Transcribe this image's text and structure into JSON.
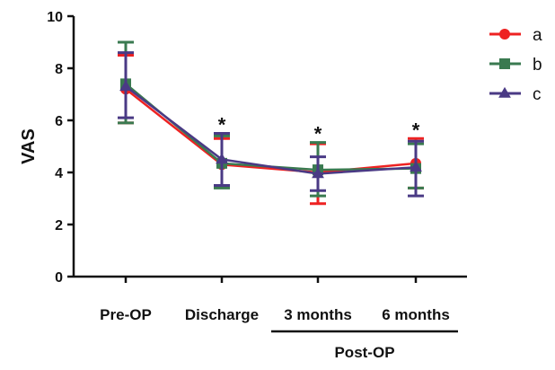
{
  "chart_data": {
    "type": "line",
    "title": "",
    "xlabel": "",
    "ylabel": "VAS",
    "ylim": [
      0,
      10
    ],
    "yticks": [
      0,
      2,
      4,
      6,
      8,
      10
    ],
    "categories": [
      "Pre-OP",
      "Discharge",
      "3 months",
      "6 months"
    ],
    "group_label": "Post-OP",
    "group_categories": [
      "3 months",
      "6 months"
    ],
    "significance_marks": [
      "",
      "*",
      "*",
      "*"
    ],
    "legend_position": "top-right",
    "grid": false,
    "series": [
      {
        "name": "a",
        "marker": "circle",
        "color": "#ee2222",
        "values": [
          7.2,
          4.3,
          4.0,
          4.35
        ],
        "error_low": [
          5.9,
          3.5,
          2.8,
          3.4
        ],
        "error_high": [
          8.5,
          5.3,
          5.1,
          5.3
        ]
      },
      {
        "name": "b",
        "marker": "square",
        "color": "#3a7a50",
        "values": [
          7.4,
          4.35,
          4.1,
          4.15
        ],
        "error_low": [
          5.9,
          3.4,
          3.1,
          3.4
        ],
        "error_high": [
          9.0,
          5.4,
          5.15,
          5.1
        ]
      },
      {
        "name": "c",
        "marker": "triangle",
        "color": "#4a3a85",
        "values": [
          7.3,
          4.5,
          3.95,
          4.2
        ],
        "error_low": [
          6.1,
          3.5,
          3.3,
          3.1
        ],
        "error_high": [
          8.6,
          5.5,
          4.6,
          5.2
        ]
      }
    ]
  }
}
